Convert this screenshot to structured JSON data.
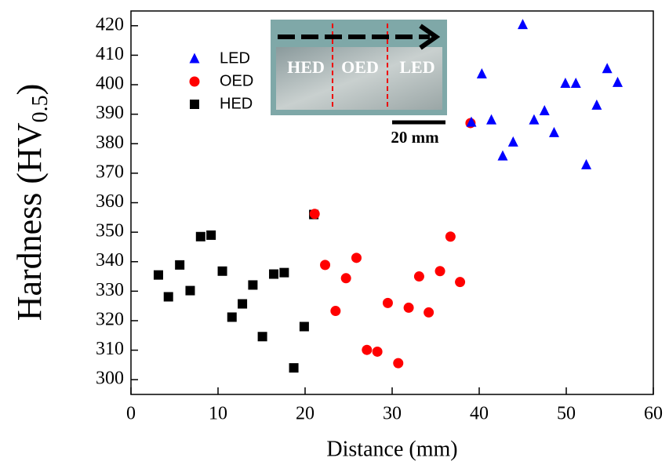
{
  "chart_data": {
    "type": "scatter",
    "x_label": "Distance (mm)",
    "y_label": {
      "text": "Hardness (HV",
      "subscript": "0.5",
      "suffix": ")"
    },
    "xlim": [
      0,
      60
    ],
    "xticks": [
      0,
      10,
      20,
      30,
      40,
      50,
      60
    ],
    "ylim": [
      295,
      425
    ],
    "yticks": [
      300,
      310,
      320,
      330,
      340,
      350,
      360,
      370,
      380,
      390,
      400,
      410,
      420
    ],
    "legend": "upper left",
    "series": [
      {
        "name": "LED",
        "color": "#0000ff",
        "marker": "triangle",
        "x": [
          39.1,
          40.3,
          41.4,
          42.7,
          43.9,
          45.0,
          46.3,
          47.5,
          48.6,
          49.9,
          51.1,
          52.3,
          53.5,
          54.7,
          55.9
        ],
        "values": [
          387.2,
          403.6,
          388.0,
          375.8,
          380.5,
          420.3,
          388.0,
          391.1,
          383.7,
          400.4,
          400.4,
          372.8,
          393.0,
          405.4,
          400.7
        ]
      },
      {
        "name": "OED",
        "color": "#ff0000",
        "marker": "circle",
        "x": [
          21.1,
          22.3,
          23.5,
          24.7,
          25.9,
          27.1,
          28.3,
          29.5,
          30.7,
          31.9,
          33.1,
          34.2,
          35.5,
          36.7,
          37.8,
          39.0
        ],
        "values": [
          356.2,
          338.9,
          323.3,
          334.4,
          341.3,
          310.1,
          309.5,
          326.0,
          305.6,
          324.4,
          335.0,
          322.8,
          336.8,
          348.5,
          333.1,
          387.0
        ]
      },
      {
        "name": "HED",
        "color": "#000000",
        "marker": "square",
        "x": [
          3.15,
          4.3,
          5.6,
          6.8,
          8.0,
          9.2,
          10.5,
          11.6,
          12.8,
          14.0,
          15.1,
          16.4,
          17.6,
          18.7,
          19.9,
          21.0
        ],
        "values": [
          335.5,
          328.1,
          338.9,
          330.2,
          348.5,
          349.0,
          336.8,
          321.2,
          325.7,
          332.1,
          314.6,
          335.8,
          336.3,
          304.0,
          318.0,
          356.0
        ]
      }
    ],
    "inset": {
      "labels": [
        "HED",
        "OED",
        "LED"
      ],
      "scale_label": "20 mm"
    }
  }
}
